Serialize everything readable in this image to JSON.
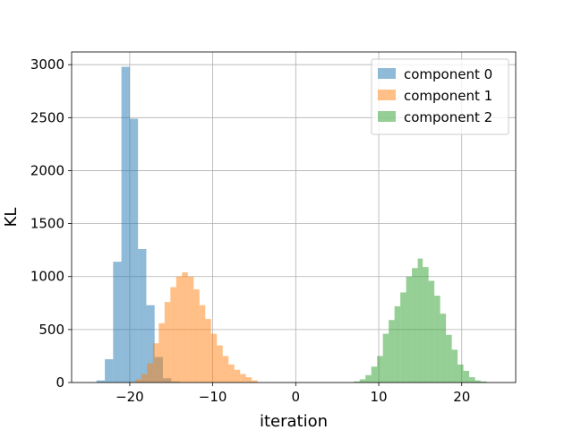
{
  "chart_data": {
    "type": "histogram",
    "title": "",
    "xlabel": "iteration",
    "ylabel": "KL",
    "xlim": [
      -27,
      26.5
    ],
    "ylim": [
      0,
      3120
    ],
    "xticks": [
      -20,
      -10,
      0,
      10,
      20
    ],
    "yticks": [
      0,
      500,
      1000,
      1500,
      2000,
      2500,
      3000
    ],
    "grid": true,
    "legend_position": "top-right",
    "series": [
      {
        "name": "component 0",
        "color": "#1f77b4",
        "alpha": 0.5,
        "bin_edges": [
          -24,
          -23,
          -22,
          -21,
          -20,
          -19,
          -18,
          -17,
          -16,
          -15,
          -14
        ],
        "counts": [
          20,
          220,
          1140,
          2980,
          2490,
          1260,
          730,
          240,
          40,
          10
        ]
      },
      {
        "name": "component 1",
        "color": "#ff7f0e",
        "alpha": 0.5,
        "bin_edges": [
          -20.0,
          -19.3,
          -18.6,
          -17.9,
          -17.2,
          -16.5,
          -15.8,
          -15.1,
          -14.4,
          -13.7,
          -13.0,
          -12.3,
          -11.6,
          -10.9,
          -10.2,
          -9.5,
          -8.8,
          -8.1,
          -7.4,
          -6.7,
          -6.0,
          -5.3,
          -4.6
        ],
        "counts": [
          5,
          30,
          80,
          180,
          370,
          560,
          760,
          900,
          1000,
          1040,
          1000,
          880,
          730,
          600,
          460,
          350,
          250,
          170,
          120,
          80,
          50,
          20
        ]
      },
      {
        "name": "component 2",
        "color": "#2ca02c",
        "alpha": 0.5,
        "bin_edges": [
          7.0,
          7.7,
          8.4,
          9.1,
          9.8,
          10.5,
          11.2,
          11.9,
          12.6,
          13.3,
          14.0,
          14.7,
          15.3,
          16.0,
          16.7,
          17.4,
          18.1,
          18.8,
          19.5,
          20.2,
          20.9,
          21.6,
          22.3,
          23.0
        ],
        "counts": [
          10,
          30,
          70,
          150,
          250,
          460,
          590,
          720,
          850,
          1000,
          1080,
          1170,
          1090,
          960,
          820,
          650,
          450,
          310,
          170,
          110,
          50,
          20,
          10
        ]
      }
    ]
  }
}
